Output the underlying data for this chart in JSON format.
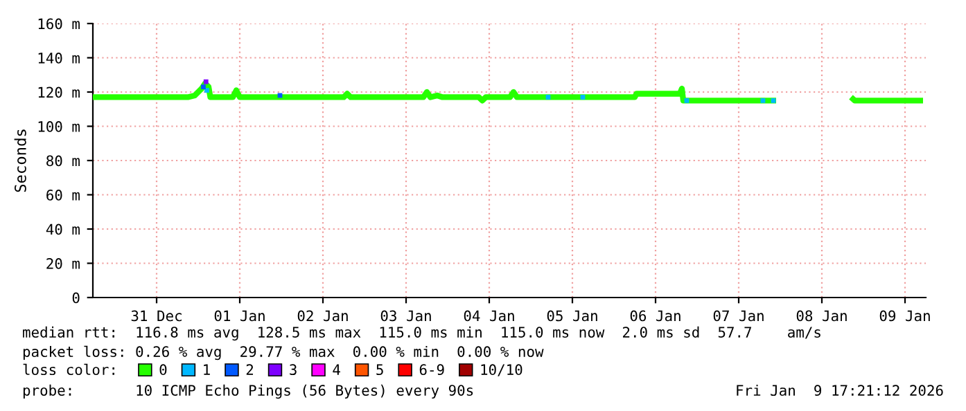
{
  "chart_data": {
    "type": "line",
    "ylabel": "Seconds",
    "xlim": [
      "2025-12-30T17:36",
      "2026-01-09T18:00"
    ],
    "xticks": [
      {
        "value": "2025-12-31T12:00",
        "label": "31 Dec"
      },
      {
        "value": "2026-01-01T12:00",
        "label": "01 Jan"
      },
      {
        "value": "2026-01-02T12:00",
        "label": "02 Jan"
      },
      {
        "value": "2026-01-03T12:00",
        "label": "03 Jan"
      },
      {
        "value": "2026-01-04T12:00",
        "label": "04 Jan"
      },
      {
        "value": "2026-01-05T12:00",
        "label": "05 Jan"
      },
      {
        "value": "2026-01-06T12:00",
        "label": "06 Jan"
      },
      {
        "value": "2026-01-07T12:00",
        "label": "07 Jan"
      },
      {
        "value": "2026-01-08T12:00",
        "label": "08 Jan"
      },
      {
        "value": "2026-01-09T12:00",
        "label": "09 Jan"
      }
    ],
    "ylim": [
      0,
      160
    ],
    "yticks": [
      0,
      {
        "value": 20,
        "label": "20 m"
      },
      {
        "value": 40,
        "label": "40 m"
      },
      {
        "value": 60,
        "label": "60 m"
      },
      {
        "value": 80,
        "label": "80 m"
      },
      {
        "value": 100,
        "label": "100 m"
      },
      {
        "value": 120,
        "label": "120 m"
      },
      {
        "value": 140,
        "label": "140 m"
      },
      {
        "value": 160,
        "label": "160 m"
      }
    ],
    "grid": true,
    "legend": "bottom",
    "legend_title": "loss color:",
    "series": [
      {
        "name": "0",
        "color": "#26ff00",
        "x": [
          "2025-12-30T17:36",
          "2025-12-31T21:00",
          "2025-12-31T23:00",
          "2026-01-01T01:00",
          "2026-01-01T02:00",
          "2026-01-01T03:00",
          "2026-01-01T03:30",
          "2026-01-01T10:00",
          "2026-01-01T11:00",
          "2026-01-01T12:00",
          "2026-01-02T18:00",
          "2026-01-02T19:00",
          "2026-01-02T20:00",
          "2026-01-03T17:00",
          "2026-01-03T18:00",
          "2026-01-03T19:00",
          "2026-01-03T21:00",
          "2026-01-03T22:30",
          "2026-01-04T09:00",
          "2026-01-04T10:00",
          "2026-01-04T11:00",
          "2026-01-04T18:00",
          "2026-01-04T19:00",
          "2026-01-04T20:00",
          "2026-01-06T06:00",
          "2026-01-06T06:30",
          "2026-01-06T19:00",
          "2026-01-06T19:36",
          "2026-01-06T20:00",
          "2026-01-07T22:48",
          "2026-01-07T23:30",
          "2026-01-08T20:00",
          "2026-01-08T20:24",
          "2026-01-08T21:30",
          "2026-01-09T17:12"
        ],
        "values": [
          117,
          117,
          118,
          122,
          125,
          123,
          117,
          117,
          121,
          117,
          117,
          119,
          117,
          117,
          120,
          117,
          118,
          117,
          117,
          115,
          117,
          117,
          120,
          117,
          117,
          119,
          119,
          122,
          115,
          115,
          null,
          null,
          117,
          115,
          115
        ]
      },
      {
        "name": "1",
        "color": "#00b8ff",
        "type": "scatter",
        "x": [
          "2026-01-01T02:30",
          "2026-01-05T05:00",
          "2026-01-05T15:00",
          "2026-01-06T21:00",
          "2026-01-07T19:00",
          "2026-01-07T22:00"
        ],
        "values": [
          121,
          117,
          117,
          115,
          115,
          115
        ]
      },
      {
        "name": "2",
        "color": "#0059ff",
        "type": "scatter",
        "x": [
          "2026-01-01T01:30",
          "2026-01-01T23:36"
        ],
        "values": [
          123,
          118
        ]
      },
      {
        "name": "3",
        "color": "#7e00ff",
        "type": "scatter",
        "x": [
          "2026-01-01T02:15"
        ],
        "values": [
          126
        ]
      },
      {
        "name": "4",
        "color": "#ff00ff",
        "type": "scatter"
      },
      {
        "name": "5",
        "color": "#ff5500",
        "type": "scatter"
      },
      {
        "name": "6-9",
        "color": "#ff0000",
        "type": "scatter"
      },
      {
        "name": "10/10",
        "color": "#a10000",
        "type": "scatter"
      }
    ],
    "annotations": [
      "median rtt:  116.8 ms avg  128.5 ms max  115.0 ms min  115.0 ms now  2.0 ms sd  57.7    am/s",
      "packet loss: 0.26 % avg  29.77 % max  0.00 % min  0.00 % now",
      "probe:       10 ICMP Echo Pings (56 Bytes) every 90s",
      "Fri Jan  9 17:21:12 2026"
    ]
  }
}
